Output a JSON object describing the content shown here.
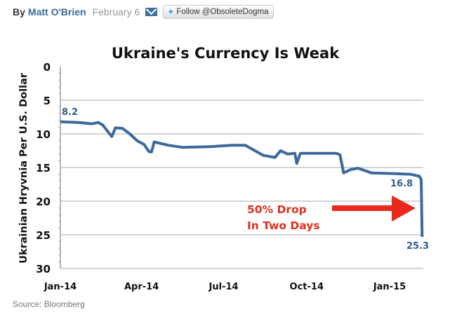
{
  "byline": {
    "by": "By",
    "author": "Matt O'Brien",
    "date": "February 6",
    "email_icon": "envelope-icon",
    "follow": "Follow @ObsoleteDogma",
    "follow_icon": "twitter-bird-icon"
  },
  "source": "Source: Bloomberg",
  "chart_data": {
    "type": "line",
    "title": "Ukraine's Currency Is Weak",
    "ylabel": "Ukrainian Hryvnia Per U.S. Dollar",
    "xlabel": "",
    "ylim": [
      0,
      30
    ],
    "y_inverted": true,
    "yticks": [
      "0",
      "5",
      "10",
      "15",
      "20",
      "25",
      "30"
    ],
    "xticks": [
      {
        "label": "Jan-14",
        "date": "2014-01-01"
      },
      {
        "label": "Apr-14",
        "date": "2014-04-01"
      },
      {
        "label": "Jul-14",
        "date": "2014-07-01"
      },
      {
        "label": "Oct-14",
        "date": "2014-10-01"
      },
      {
        "label": "Jan-15",
        "date": "2015-01-01"
      }
    ],
    "grid": true,
    "line_color": "#3b6a9b",
    "annotation_color": "#e8291c",
    "series": [
      {
        "points": [
          [
            "2014-01-01",
            8.2
          ],
          [
            "2014-01-21",
            8.3
          ],
          [
            "2014-02-05",
            8.5
          ],
          [
            "2014-02-12",
            8.3
          ],
          [
            "2014-02-17",
            8.7
          ],
          [
            "2014-02-27",
            10.4
          ],
          [
            "2014-03-03",
            9.1
          ],
          [
            "2014-03-11",
            9.2
          ],
          [
            "2014-03-19",
            10.0
          ],
          [
            "2014-03-27",
            11.0
          ],
          [
            "2014-04-04",
            11.6
          ],
          [
            "2014-04-09",
            12.6
          ],
          [
            "2014-04-12",
            12.7
          ],
          [
            "2014-04-15",
            11.2
          ],
          [
            "2014-05-01",
            11.7
          ],
          [
            "2014-05-16",
            12.0
          ],
          [
            "2014-06-16",
            11.9
          ],
          [
            "2014-07-10",
            11.7
          ],
          [
            "2014-07-25",
            11.7
          ],
          [
            "2014-08-14",
            13.2
          ],
          [
            "2014-08-27",
            13.5
          ],
          [
            "2014-09-02",
            12.5
          ],
          [
            "2014-09-10",
            13.0
          ],
          [
            "2014-09-18",
            12.9
          ],
          [
            "2014-09-20",
            14.4
          ],
          [
            "2014-09-24",
            12.9
          ],
          [
            "2014-11-03",
            12.9
          ],
          [
            "2014-11-07",
            13.1
          ],
          [
            "2014-11-11",
            15.8
          ],
          [
            "2014-11-19",
            15.3
          ],
          [
            "2014-11-27",
            15.1
          ],
          [
            "2014-12-12",
            15.8
          ],
          [
            "2015-01-05",
            15.9
          ],
          [
            "2015-01-24",
            16.0
          ],
          [
            "2015-02-03",
            16.3
          ],
          [
            "2015-02-05",
            16.8
          ],
          [
            "2015-02-06",
            25.3
          ]
        ]
      }
    ],
    "data_labels": {
      "start": "8.2",
      "before": "16.8",
      "end": "25.3"
    },
    "annotation": {
      "line1": "50% Drop",
      "line2": "In Two Days"
    }
  }
}
